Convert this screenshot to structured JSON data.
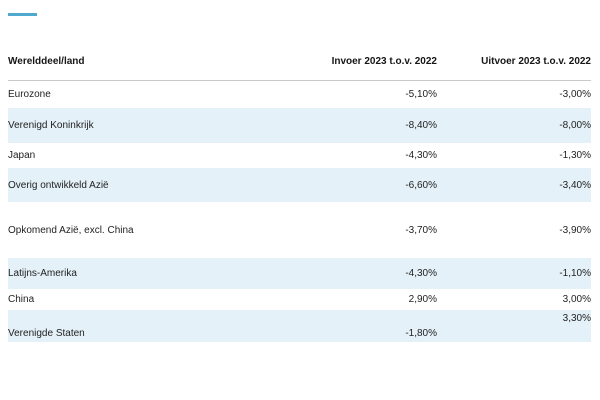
{
  "accent": {
    "dash_color": "#4fa9cf"
  },
  "colors": {
    "zebra_row": "#e4f1f8",
    "text": "#1f1f1f",
    "header_rule": "#c9c9c9",
    "accent": "#4fa9cf"
  },
  "table": {
    "headers": {
      "region": "Werelddeel/land",
      "invoer": "Invoer 2023 t.o.v. 2022",
      "uitvoer": "Uitvoer 2023 t.o.v. 2022"
    },
    "rows": [
      {
        "label": "Eurozone",
        "invoer": "-5,10%",
        "uitvoer": "-3,00%"
      },
      {
        "label": "Verenigd Koninkrijk",
        "invoer": "-8,40%",
        "uitvoer": "-8,00%"
      },
      {
        "label": "Japan",
        "invoer": "-4,30%",
        "uitvoer": "-1,30%"
      },
      {
        "label": "Overig ontwikkeld Azië",
        "invoer": "-6,60%",
        "uitvoer": "-3,40%"
      },
      {
        "label": "Opkomend Azië, excl. China",
        "invoer": "-3,70%",
        "uitvoer": "-3,90%"
      },
      {
        "label": "Latijns-Amerika",
        "invoer": "-4,30%",
        "uitvoer": "-1,10%"
      },
      {
        "label": "China",
        "invoer": "2,90%",
        "uitvoer": "3,00%"
      },
      {
        "label": "Verenigde Staten",
        "invoer": "-1,80%",
        "uitvoer": "3,30%"
      }
    ]
  },
  "chart_data": {
    "type": "table",
    "title": "",
    "columns": [
      "Werelddeel/land",
      "Invoer 2023 t.o.v. 2022",
      "Uitvoer 2023 t.o.v. 2022"
    ],
    "categories": [
      "Eurozone",
      "Verenigd Koninkrijk",
      "Japan",
      "Overig ontwikkeld Azië",
      "Opkomend Azië, excl. China",
      "Latijns-Amerika",
      "China",
      "Verenigde Staten"
    ],
    "series": [
      {
        "name": "Invoer 2023 t.o.v. 2022",
        "values": [
          -5.1,
          -8.4,
          -4.3,
          -6.6,
          -3.7,
          -4.3,
          2.9,
          -1.8
        ]
      },
      {
        "name": "Uitvoer 2023 t.o.v. 2022",
        "values": [
          -3.0,
          -8.0,
          -1.3,
          -3.4,
          -3.9,
          -1.1,
          3.0,
          3.3
        ]
      }
    ],
    "unit": "%",
    "notes": "Dutch decimal-comma formatting; zebra-striped statistics table"
  }
}
